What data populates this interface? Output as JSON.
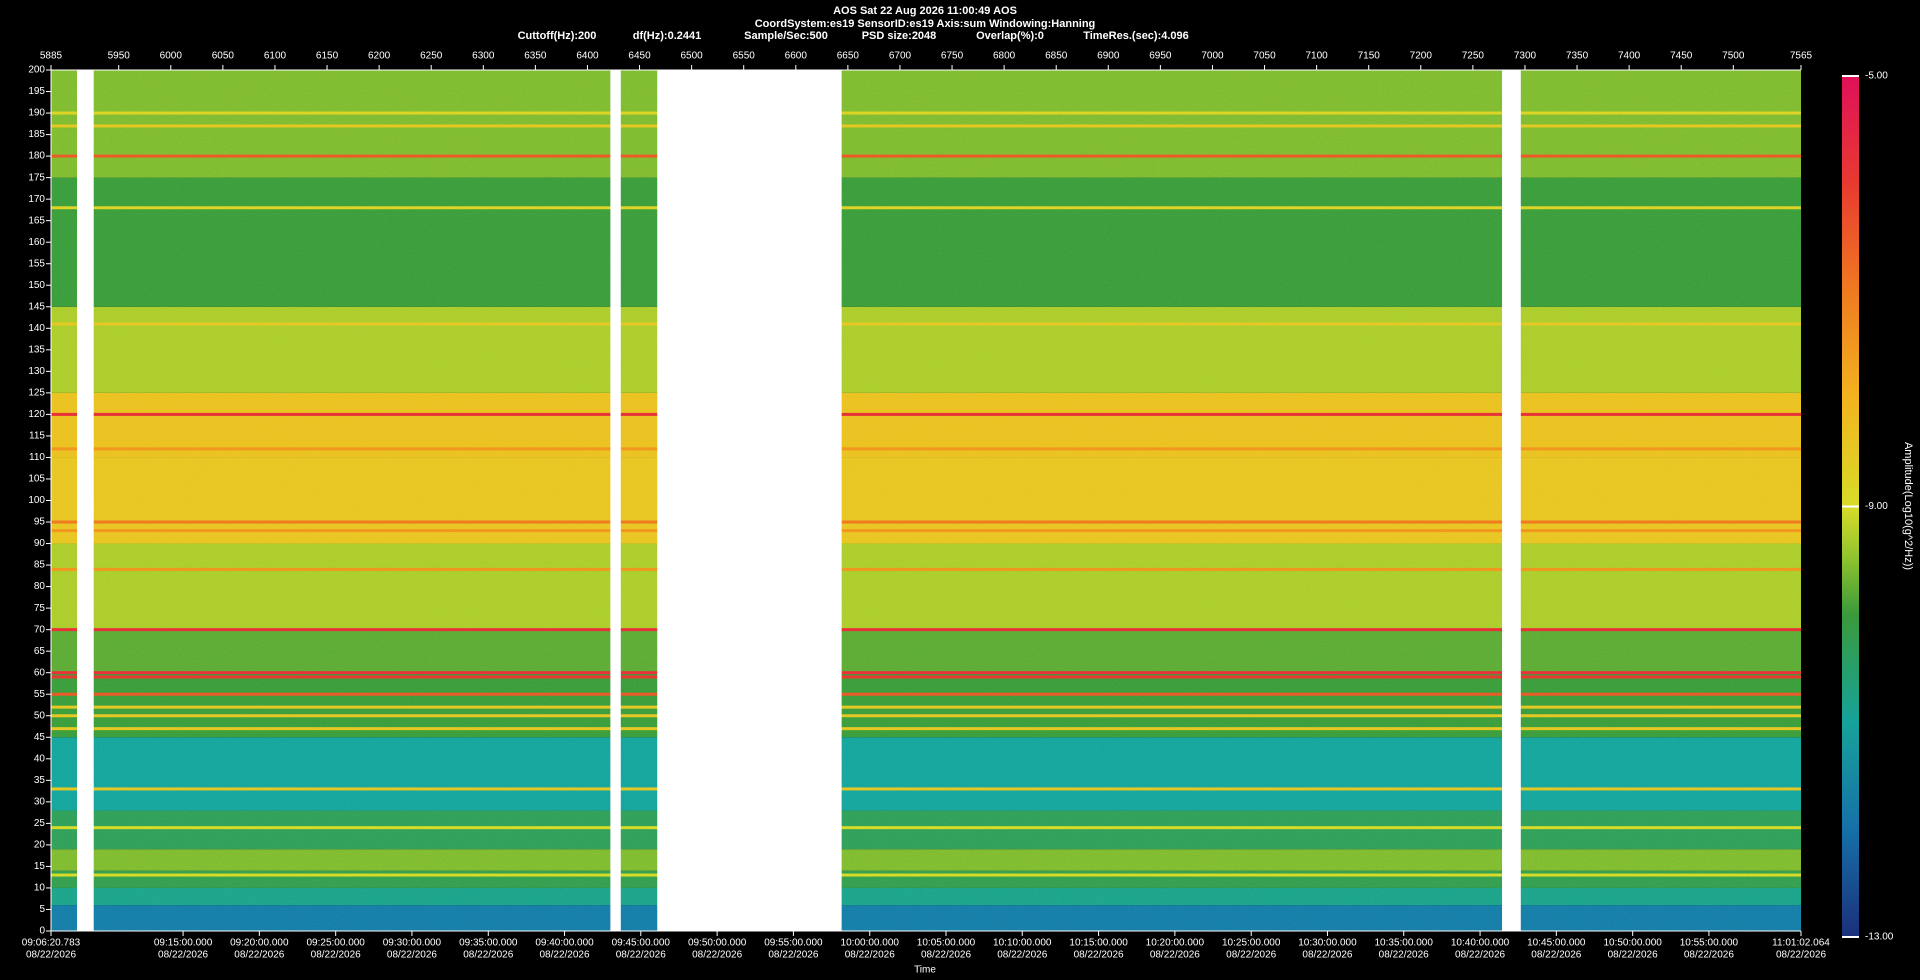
{
  "chart_data": {
    "type": "spectrogram",
    "title": "AOS  Sat 22 Aug 2026 11:00:49  AOS",
    "subtitle": "CoordSystem:es19   SensorID:es19   Axis:sum   Windowing:Hanning",
    "info": [
      "Cuttoff(Hz):200",
      "df(Hz):0.2441",
      "Sample/Sec:500",
      "PSD size:2048",
      "Overlap(%):0",
      "TimeRes.(sec):4.096"
    ],
    "x_label": "Time",
    "colorbar_label": "Amplitude(Log10(g^2/Hz))",
    "xlim": [
      5885,
      7565
    ],
    "xticks": [
      5885,
      5950,
      6000,
      6050,
      6100,
      6150,
      6200,
      6250,
      6300,
      6350,
      6400,
      6450,
      6500,
      6550,
      6600,
      6650,
      6700,
      6750,
      6800,
      6850,
      6900,
      6950,
      7000,
      7050,
      7100,
      7150,
      7200,
      7250,
      7300,
      7350,
      7400,
      7450,
      7500,
      7565
    ],
    "time_ticks": [
      {
        "value": 5885,
        "label": "09:06:20.783",
        "date": "08/22/2026"
      },
      {
        "value": 6011.8,
        "label": "09:15:00.000",
        "date": "08/22/2026"
      },
      {
        "value": 6085.0,
        "label": "09:20:00.000",
        "date": "08/22/2026"
      },
      {
        "value": 6158.3,
        "label": "09:25:00.000",
        "date": "08/22/2026"
      },
      {
        "value": 6231.5,
        "label": "09:30:00.000",
        "date": "08/22/2026"
      },
      {
        "value": 6304.8,
        "label": "09:35:00.000",
        "date": "08/22/2026"
      },
      {
        "value": 6378.0,
        "label": "09:40:00.000",
        "date": "08/22/2026"
      },
      {
        "value": 6451.2,
        "label": "09:45:00.000",
        "date": "08/22/2026"
      },
      {
        "value": 6524.5,
        "label": "09:50:00.000",
        "date": "08/22/2026"
      },
      {
        "value": 6597.7,
        "label": "09:55:00.000",
        "date": "08/22/2026"
      },
      {
        "value": 6671.0,
        "label": "10:00:00.000",
        "date": "08/22/2026"
      },
      {
        "value": 6744.2,
        "label": "10:05:00.000",
        "date": "08/22/2026"
      },
      {
        "value": 6817.4,
        "label": "10:10:00.000",
        "date": "08/22/2026"
      },
      {
        "value": 6890.7,
        "label": "10:15:00.000",
        "date": "08/22/2026"
      },
      {
        "value": 6963.9,
        "label": "10:20:00.000",
        "date": "08/22/2026"
      },
      {
        "value": 7037.2,
        "label": "10:25:00.000",
        "date": "08/22/2026"
      },
      {
        "value": 7110.4,
        "label": "10:30:00.000",
        "date": "08/22/2026"
      },
      {
        "value": 7183.6,
        "label": "10:35:00.000",
        "date": "08/22/2026"
      },
      {
        "value": 7256.9,
        "label": "10:40:00.000",
        "date": "08/22/2026"
      },
      {
        "value": 7330.1,
        "label": "10:45:00.000",
        "date": "08/22/2026"
      },
      {
        "value": 7403.4,
        "label": "10:50:00.000",
        "date": "08/22/2026"
      },
      {
        "value": 7476.6,
        "label": "10:55:00.000",
        "date": "08/22/2026"
      },
      {
        "value": 7565,
        "label": "11:01:02.064",
        "date": "08/22/2026"
      }
    ],
    "ylim": [
      0,
      200
    ],
    "yticks": [
      0,
      5,
      10,
      15,
      20,
      25,
      30,
      35,
      40,
      45,
      50,
      55,
      60,
      65,
      70,
      75,
      80,
      85,
      90,
      95,
      100,
      105,
      110,
      115,
      120,
      125,
      130,
      135,
      140,
      145,
      150,
      155,
      160,
      165,
      170,
      175,
      180,
      185,
      190,
      195,
      200
    ],
    "clim": [
      -13,
      -5
    ],
    "colorbar_ticks": [
      {
        "value": -5,
        "label": "-5.00"
      },
      {
        "value": -9,
        "label": "-9.00"
      },
      {
        "value": -13,
        "label": "-13.00"
      }
    ],
    "colorscale": [
      {
        "value": -13,
        "color": "#1b2f7a"
      },
      {
        "value": -12,
        "color": "#1670a8"
      },
      {
        "value": -11,
        "color": "#16a39a"
      },
      {
        "value": -10,
        "color": "#3a9a3a"
      },
      {
        "value": -9.5,
        "color": "#8cc22e"
      },
      {
        "value": -9,
        "color": "#d8dc28"
      },
      {
        "value": -8,
        "color": "#f2b41e"
      },
      {
        "value": -7,
        "color": "#f07a20"
      },
      {
        "value": -6,
        "color": "#e83a30"
      },
      {
        "value": -5,
        "color": "#e0105a"
      }
    ],
    "bands": [
      {
        "from": 0,
        "to": 6,
        "value": -11.8
      },
      {
        "from": 6,
        "to": 10,
        "value": -10.8
      },
      {
        "from": 10,
        "to": 14,
        "value": -10.2
      },
      {
        "from": 14,
        "to": 19,
        "value": -9.6
      },
      {
        "from": 19,
        "to": 28,
        "value": -10.3
      },
      {
        "from": 28,
        "to": 45,
        "value": -11
      },
      {
        "from": 45,
        "to": 60,
        "value": -10
      },
      {
        "from": 60,
        "to": 70,
        "value": -9.8
      },
      {
        "from": 70,
        "to": 90,
        "value": -9.3
      },
      {
        "from": 90,
        "to": 110,
        "value": -8.4
      },
      {
        "from": 110,
        "to": 125,
        "value": -8.3
      },
      {
        "from": 125,
        "to": 145,
        "value": -9.3
      },
      {
        "from": 145,
        "to": 175,
        "value": -10
      },
      {
        "from": 175,
        "to": 200,
        "value": -9.6
      }
    ],
    "lines": [
      {
        "freq": 180,
        "value": -6.5
      },
      {
        "freq": 120,
        "value": -5.8
      },
      {
        "freq": 112,
        "value": -7.5
      },
      {
        "freq": 95,
        "value": -7
      },
      {
        "freq": 93,
        "value": -7.5
      },
      {
        "freq": 84,
        "value": -7.5
      },
      {
        "freq": 70,
        "value": -5.8
      },
      {
        "freq": 60,
        "value": -5.8
      },
      {
        "freq": 59,
        "value": -6
      },
      {
        "freq": 55,
        "value": -6.5
      },
      {
        "freq": 52,
        "value": -8.5
      },
      {
        "freq": 50,
        "value": -8.5
      },
      {
        "freq": 47,
        "value": -8.5
      },
      {
        "freq": 33,
        "value": -8.5
      },
      {
        "freq": 141,
        "value": -8.5
      },
      {
        "freq": 168,
        "value": -8.8
      },
      {
        "freq": 187,
        "value": -8.5
      },
      {
        "freq": 190,
        "value": -8.8
      },
      {
        "freq": 24,
        "value": -9
      },
      {
        "freq": 13,
        "value": -9
      }
    ],
    "gaps": [
      {
        "from": 5910,
        "to": 5926
      },
      {
        "from": 6422,
        "to": 6432
      },
      {
        "from": 6467,
        "to": 6644
      },
      {
        "from": 7278,
        "to": 7296
      }
    ]
  }
}
